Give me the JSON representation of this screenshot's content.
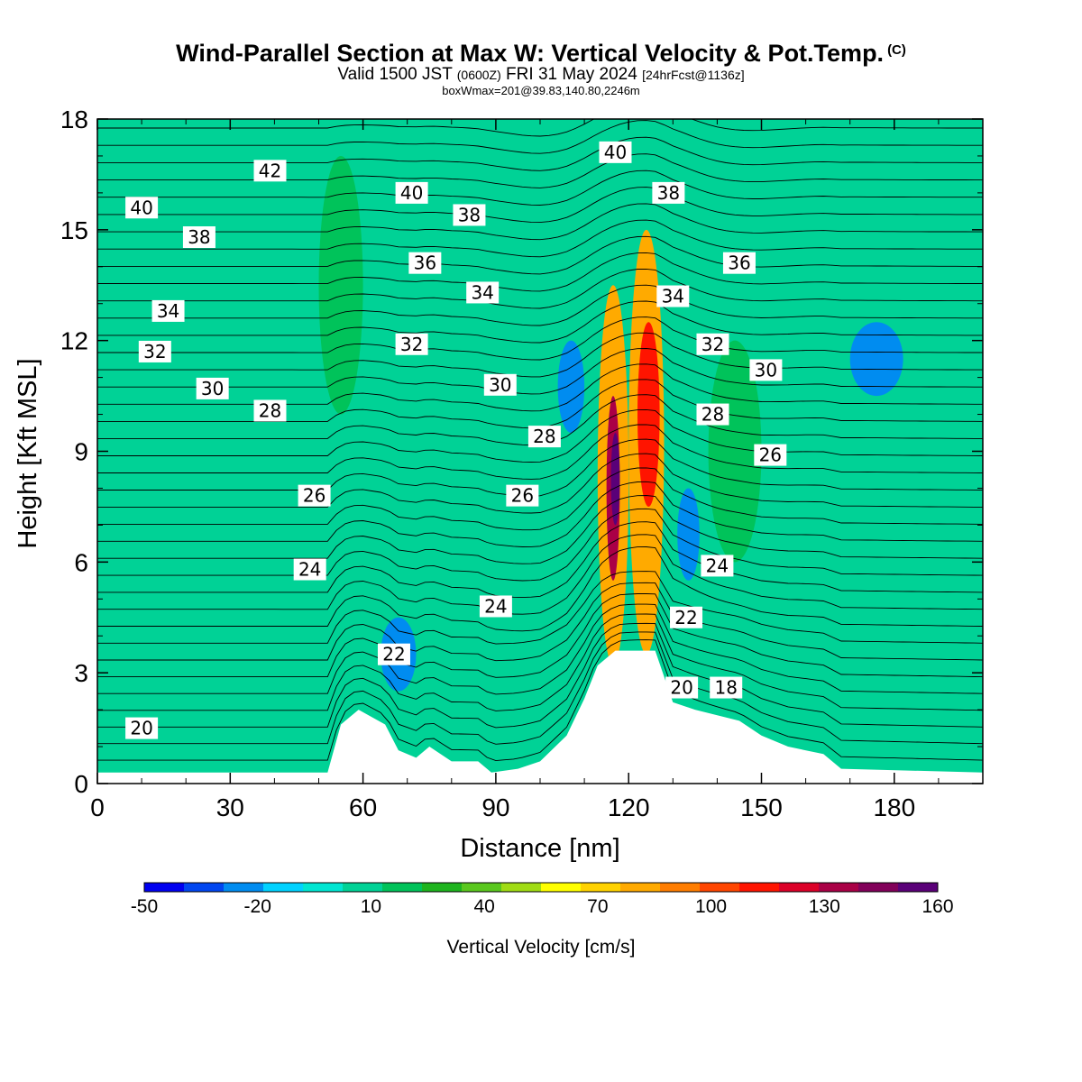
{
  "chart_data": {
    "type": "heatmap",
    "title": "Wind-Parallel Section at Max W: Vertical Velocity & Pot.Temp.",
    "title_mark": "(C)",
    "subtitle": {
      "pre": "Valid 1500 JST ",
      "z": "(0600Z)",
      "mid": " FRI 31 May 2024 ",
      "fcst": "[24hrFcst@1136z]"
    },
    "subtitle2": "boxWmax=201@39.83,140.80,2246m",
    "xlabel": "Distance [nm]",
    "ylabel": "Height [Kft MSL]",
    "xlim": [
      0,
      200
    ],
    "ylim": [
      0,
      18
    ],
    "x_ticks": [
      "0",
      "30",
      "60",
      "90",
      "120",
      "150",
      "180"
    ],
    "y_ticks": [
      "0",
      "3",
      "6",
      "9",
      "12",
      "15",
      "18"
    ],
    "colorbar": {
      "title": "Vertical Velocity [cm/s]",
      "labels": [
        "-50",
        "-20",
        "10",
        "40",
        "70",
        "100",
        "130",
        "160"
      ],
      "range": [
        -50,
        160
      ],
      "colors": [
        "#0000f0",
        "#0046f0",
        "#008cf0",
        "#00d2ff",
        "#00e6d2",
        "#00d296",
        "#00c35a",
        "#1eb41e",
        "#5ac81e",
        "#a0dc14",
        "#ffff00",
        "#ffd200",
        "#ffaa00",
        "#ff7d00",
        "#ff4600",
        "#ff1400",
        "#dc0028",
        "#aa0046",
        "#82005a",
        "#5a0078"
      ]
    },
    "w_field": {
      "background": 8,
      "cells": [
        {
          "x": [
            113,
            120
          ],
          "z": [
            3.2,
            13.5
          ],
          "w": 85
        },
        {
          "x": [
            115,
            118
          ],
          "z": [
            5.5,
            10.5
          ],
          "w": 130
        },
        {
          "x": [
            116,
            118
          ],
          "z": [
            7,
            9.5
          ],
          "w": 160
        },
        {
          "x": [
            120,
            128
          ],
          "z": [
            3.5,
            15
          ],
          "w": 80
        },
        {
          "x": [
            122,
            127
          ],
          "z": [
            7.5,
            12.5
          ],
          "w": 110
        },
        {
          "x": [
            104,
            110
          ],
          "z": [
            9.5,
            12
          ],
          "w": -25
        },
        {
          "x": [
            131,
            136
          ],
          "z": [
            5.5,
            8
          ],
          "w": -20
        },
        {
          "x": [
            170,
            182
          ],
          "z": [
            10.5,
            12.5
          ],
          "w": -20
        },
        {
          "x": [
            64,
            72
          ],
          "z": [
            2.5,
            4.5
          ],
          "w": -20
        },
        {
          "x": [
            50,
            60
          ],
          "z": [
            10,
            17
          ],
          "w": 15
        },
        {
          "x": [
            138,
            150
          ],
          "z": [
            6,
            12
          ],
          "w": 15
        }
      ]
    },
    "terrain": [
      [
        0,
        0.3
      ],
      [
        52,
        0.3
      ],
      [
        55,
        1.6
      ],
      [
        59,
        2.0
      ],
      [
        65,
        1.6
      ],
      [
        68,
        0.9
      ],
      [
        72,
        0.7
      ],
      [
        75,
        1.0
      ],
      [
        80,
        0.6
      ],
      [
        86,
        0.6
      ],
      [
        89,
        0.3
      ],
      [
        95,
        0.4
      ],
      [
        100,
        0.6
      ],
      [
        106,
        1.3
      ],
      [
        110,
        2.3
      ],
      [
        113,
        3.2
      ],
      [
        117,
        3.6
      ],
      [
        126,
        3.6
      ],
      [
        130,
        2.2
      ],
      [
        135,
        2.0
      ],
      [
        145,
        1.7
      ],
      [
        150,
        1.3
      ],
      [
        156,
        1.0
      ],
      [
        164,
        0.8
      ],
      [
        168,
        0.4
      ],
      [
        200,
        0.3
      ]
    ],
    "theta_labels": [
      {
        "text": "42",
        "x": 39,
        "z": 16.6
      },
      {
        "text": "40",
        "x": 10,
        "z": 15.6
      },
      {
        "text": "40",
        "x": 71,
        "z": 16.0
      },
      {
        "text": "40",
        "x": 117,
        "z": 17.1
      },
      {
        "text": "38",
        "x": 23,
        "z": 14.8
      },
      {
        "text": "38",
        "x": 84,
        "z": 15.4
      },
      {
        "text": "38",
        "x": 129,
        "z": 16.0
      },
      {
        "text": "36",
        "x": 74,
        "z": 14.1
      },
      {
        "text": "36",
        "x": 145,
        "z": 14.1
      },
      {
        "text": "34",
        "x": 16,
        "z": 12.8
      },
      {
        "text": "34",
        "x": 87,
        "z": 13.3
      },
      {
        "text": "34",
        "x": 130,
        "z": 13.2
      },
      {
        "text": "32",
        "x": 13,
        "z": 11.7
      },
      {
        "text": "32",
        "x": 71,
        "z": 11.9
      },
      {
        "text": "32",
        "x": 139,
        "z": 11.9
      },
      {
        "text": "30",
        "x": 26,
        "z": 10.7
      },
      {
        "text": "30",
        "x": 91,
        "z": 10.8
      },
      {
        "text": "30",
        "x": 151,
        "z": 11.2
      },
      {
        "text": "28",
        "x": 39,
        "z": 10.1
      },
      {
        "text": "28",
        "x": 101,
        "z": 9.4
      },
      {
        "text": "28",
        "x": 139,
        "z": 10.0
      },
      {
        "text": "26",
        "x": 49,
        "z": 7.8
      },
      {
        "text": "26",
        "x": 96,
        "z": 7.8
      },
      {
        "text": "26",
        "x": 152,
        "z": 8.9
      },
      {
        "text": "24",
        "x": 48,
        "z": 5.8
      },
      {
        "text": "24",
        "x": 90,
        "z": 4.8
      },
      {
        "text": "24",
        "x": 140,
        "z": 5.9
      },
      {
        "text": "22",
        "x": 67,
        "z": 3.5
      },
      {
        "text": "22",
        "x": 133,
        "z": 4.5
      },
      {
        "text": "20",
        "x": 10,
        "z": 1.5
      },
      {
        "text": "20",
        "x": 132,
        "z": 2.6
      },
      {
        "text": "18",
        "x": 142,
        "z": 2.6
      }
    ]
  }
}
